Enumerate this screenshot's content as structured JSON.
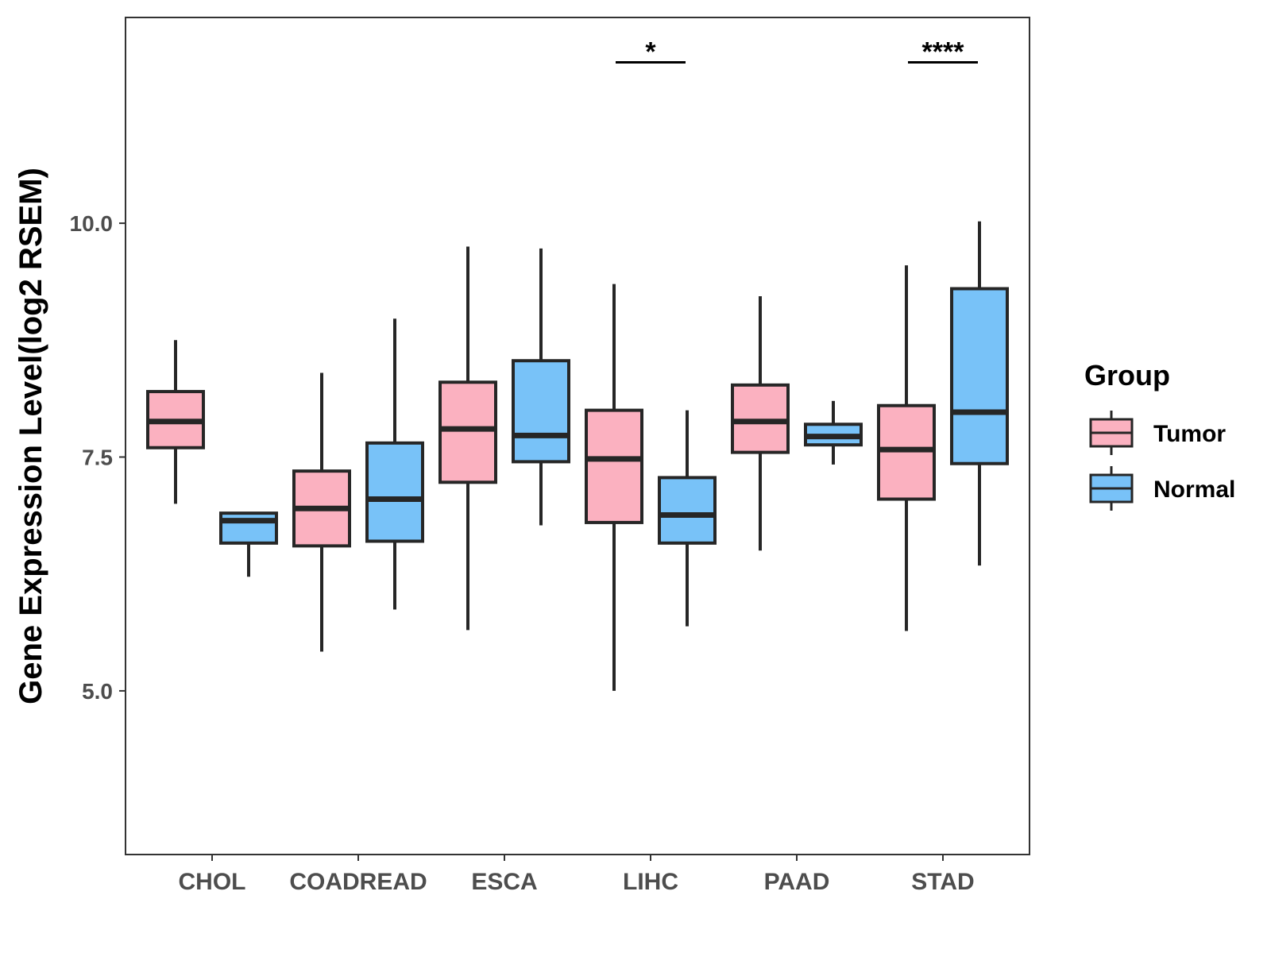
{
  "chart_data": {
    "type": "boxplot",
    "title": "",
    "xlabel": "",
    "ylabel": "Gene Expression Level(log2 RSEM)",
    "ylim": [
      3.25,
      12.2
    ],
    "yticks": [
      5.0,
      7.5,
      10.0
    ],
    "ytick_labels": [
      "5.0",
      "7.5",
      "10.0"
    ],
    "grid": false,
    "categories": [
      "CHOL",
      "COADREAD",
      "ESCA",
      "LIHC",
      "PAAD",
      "STAD"
    ],
    "legend": {
      "title": "Group",
      "position": "right",
      "items": [
        {
          "label": "Tumor",
          "color": "#fbb1c0"
        },
        {
          "label": "Normal",
          "color": "#78c2f8"
        }
      ]
    },
    "series": [
      {
        "name": "Tumor",
        "color": "#fbb1c0",
        "boxes": [
          {
            "category": "CHOL",
            "min": 7.0,
            "q1": 7.6,
            "median": 7.88,
            "q3": 8.2,
            "max": 8.75
          },
          {
            "category": "COADREAD",
            "min": 5.42,
            "q1": 6.55,
            "median": 6.95,
            "q3": 7.35,
            "max": 8.4
          },
          {
            "category": "ESCA",
            "min": 5.65,
            "q1": 7.23,
            "median": 7.8,
            "q3": 8.3,
            "max": 9.75
          },
          {
            "category": "LIHC",
            "min": 5.0,
            "q1": 6.8,
            "median": 7.48,
            "q3": 8.0,
            "max": 9.35
          },
          {
            "category": "PAAD",
            "min": 6.5,
            "q1": 7.55,
            "median": 7.88,
            "q3": 8.27,
            "max": 9.22
          },
          {
            "category": "STAD",
            "min": 5.64,
            "q1": 7.05,
            "median": 7.58,
            "q3": 8.05,
            "max": 9.55
          }
        ]
      },
      {
        "name": "Normal",
        "color": "#78c2f8",
        "boxes": [
          {
            "category": "CHOL",
            "min": 6.22,
            "q1": 6.58,
            "median": 6.82,
            "q3": 6.9,
            "max": 6.9
          },
          {
            "category": "COADREAD",
            "min": 5.87,
            "q1": 6.6,
            "median": 7.05,
            "q3": 7.65,
            "max": 8.98
          },
          {
            "category": "ESCA",
            "min": 6.77,
            "q1": 7.45,
            "median": 7.73,
            "q3": 8.53,
            "max": 9.73
          },
          {
            "category": "LIHC",
            "min": 5.69,
            "q1": 6.58,
            "median": 6.88,
            "q3": 7.28,
            "max": 8.0
          },
          {
            "category": "PAAD",
            "min": 7.42,
            "q1": 7.63,
            "median": 7.72,
            "q3": 7.85,
            "max": 8.1
          },
          {
            "category": "STAD",
            "min": 6.34,
            "q1": 7.43,
            "median": 7.98,
            "q3": 9.3,
            "max": 10.02
          }
        ]
      }
    ],
    "annotations": [
      {
        "category": "LIHC",
        "label": "*",
        "y": 11.72
      },
      {
        "category": "STAD",
        "label": "****",
        "y": 11.72
      }
    ]
  }
}
